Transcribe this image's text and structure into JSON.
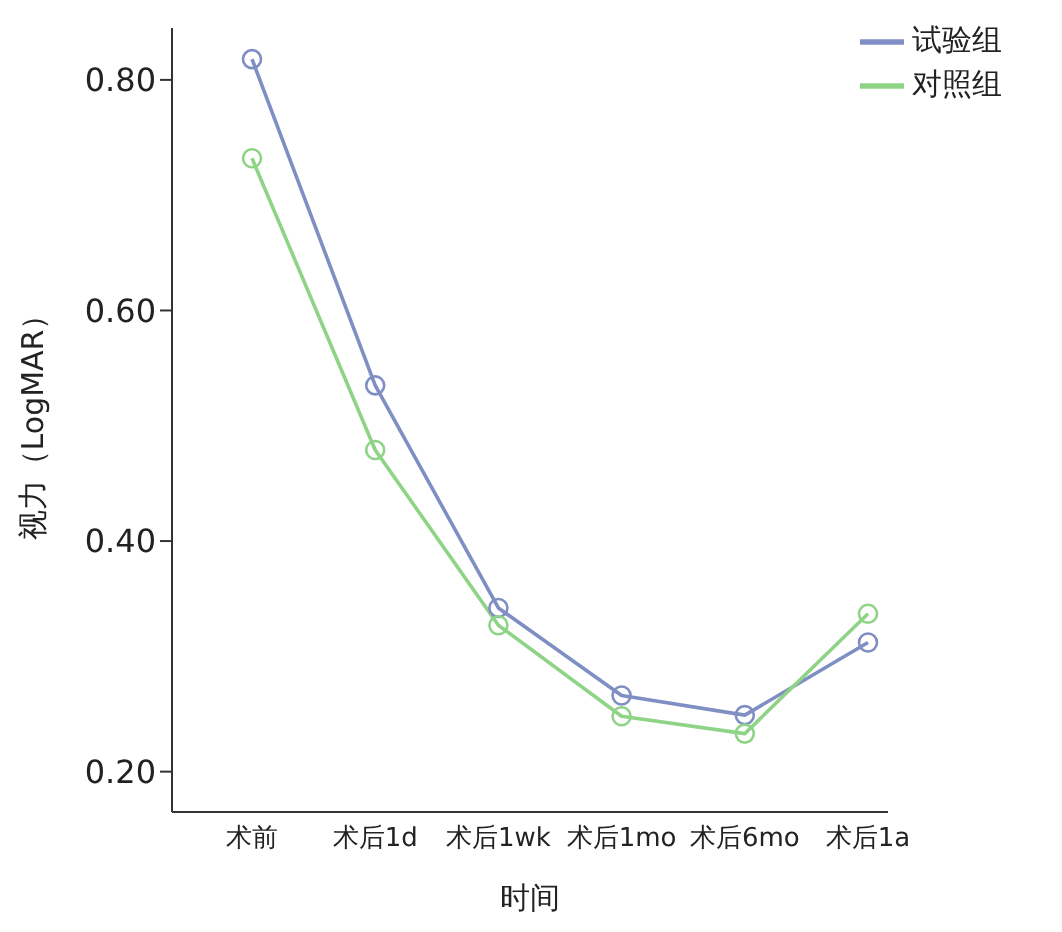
{
  "chart_data": {
    "type": "line",
    "xlabel": "时间",
    "ylabel": "视力（LogMAR）",
    "categories": [
      "术前",
      "术后1d",
      "术后1wk",
      "术后1mo",
      "术后6mo",
      "术后1a"
    ],
    "series": [
      {
        "name": "试验组",
        "color": "#7f8fc4",
        "values": [
          0.818,
          0.535,
          0.342,
          0.266,
          0.249,
          0.312
        ]
      },
      {
        "name": "对照组",
        "color": "#8fd486",
        "values": [
          0.732,
          0.479,
          0.327,
          0.248,
          0.233,
          0.337
        ]
      }
    ],
    "ylim": [
      0.165,
      0.845
    ],
    "yticks": [
      {
        "value": 0.2,
        "label": "0.20"
      },
      {
        "value": 0.4,
        "label": "0.40"
      },
      {
        "value": 0.6,
        "label": "0.60"
      },
      {
        "value": 0.8,
        "label": "0.80"
      }
    ],
    "grid": false,
    "legend": "top right",
    "marker": "circle",
    "line_style": "solid"
  }
}
